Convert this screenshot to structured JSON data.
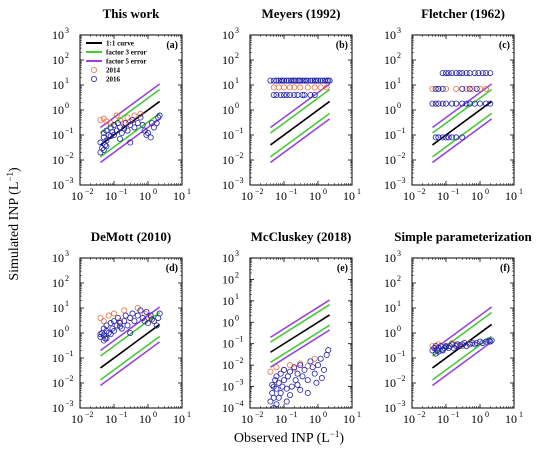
{
  "figure": {
    "xlabel": "Observed INP (L",
    "xlabel_unit_sup": "−1",
    "xlabel_close": ")",
    "ylabel": "Simulated INP (L",
    "ylabel_unit_sup": "−1",
    "ylabel_close": ")"
  },
  "legend": {
    "items": [
      {
        "label": "1:1 curve",
        "kind": "line",
        "color": "#000000"
      },
      {
        "label": "factor 3 error",
        "kind": "line",
        "color": "#44cc33"
      },
      {
        "label": "factor 5 error",
        "kind": "line",
        "color": "#9944dd"
      },
      {
        "label": "2014",
        "kind": "marker",
        "color": "#e87040"
      },
      {
        "label": "2016",
        "kind": "marker",
        "color": "#2222aa"
      }
    ]
  },
  "colors": {
    "one_to_one": "#000000",
    "factor3": "#44cc33",
    "factor5": "#9944dd",
    "y2014": "#e87040",
    "y2016": "#2222aa"
  },
  "chart_data": [
    {
      "type": "scatter",
      "id": "a",
      "panel_label": "(a)",
      "title": "This work",
      "xscale": "log",
      "yscale": "log",
      "xlim": [
        0.01,
        10
      ],
      "ylim": [
        0.001,
        1000
      ],
      "x_ticks": [
        "10",
        "10",
        "10",
        "10"
      ],
      "x_tick_exps": [
        "−2",
        "−1",
        "0",
        "1"
      ],
      "y_ticks": [
        "10",
        "10",
        "10",
        "10",
        "10",
        "10",
        "10"
      ],
      "y_tick_exps": [
        "−3",
        "−2",
        "−1",
        "0",
        "1",
        "2",
        "3"
      ],
      "reference_lines": {
        "one_to_one": [
          [
            0.04,
            2.2
          ]
        ],
        "factor3": [
          0.3333,
          3
        ],
        "factor5": [
          0.2,
          5
        ]
      },
      "series": [
        {
          "name": "2014",
          "x": [
            0.04,
            0.05,
            0.06,
            0.08,
            0.1,
            0.15,
            0.2,
            0.12,
            0.25,
            0.3,
            0.4,
            0.6
          ],
          "y": [
            0.4,
            0.45,
            0.35,
            0.3,
            0.25,
            0.4,
            0.3,
            0.6,
            0.5,
            0.35,
            0.6,
            0.7
          ]
        },
        {
          "name": "2016",
          "x": [
            0.04,
            0.04,
            0.045,
            0.05,
            0.05,
            0.055,
            0.06,
            0.06,
            0.07,
            0.08,
            0.08,
            0.09,
            0.1,
            0.1,
            0.12,
            0.13,
            0.15,
            0.17,
            0.2,
            0.22,
            0.25,
            0.3,
            0.35,
            0.4,
            0.5,
            0.6,
            0.7,
            0.8,
            1.0,
            1.2,
            1.5,
            1.8,
            2.0,
            2.2,
            0.05,
            0.06,
            0.15,
            0.3,
            0.9,
            1.3
          ],
          "y": [
            0.02,
            0.05,
            0.03,
            0.08,
            0.12,
            0.04,
            0.15,
            0.06,
            0.1,
            0.2,
            0.09,
            0.13,
            0.25,
            0.1,
            0.15,
            0.3,
            0.2,
            0.12,
            0.18,
            0.3,
            0.15,
            0.25,
            0.4,
            0.2,
            0.3,
            0.5,
            0.25,
            0.15,
            0.12,
            0.08,
            0.2,
            0.3,
            0.5,
            0.6,
            0.025,
            0.035,
            0.07,
            0.05,
            0.1,
            0.3
          ]
        }
      ]
    },
    {
      "type": "scatter",
      "id": "b",
      "panel_label": "(b)",
      "title": "Meyers (1992)",
      "xscale": "log",
      "yscale": "log",
      "xlim": [
        0.01,
        10
      ],
      "ylim": [
        0.001,
        1000
      ],
      "x_ticks": [
        "10",
        "10",
        "10",
        "10"
      ],
      "x_tick_exps": [
        "−2",
        "−1",
        "0",
        "1"
      ],
      "y_ticks": [
        "10",
        "10",
        "10",
        "10",
        "10",
        "10",
        "10"
      ],
      "y_tick_exps": [
        "−3",
        "−2",
        "−1",
        "0",
        "1",
        "2",
        "3"
      ],
      "reference_lines": {
        "one_to_one": [
          [
            0.04,
            2.2
          ]
        ],
        "factor3": [
          0.3333,
          3
        ],
        "factor5": [
          0.2,
          5
        ]
      },
      "series": [
        {
          "name": "2014",
          "x": [
            0.05,
            0.07,
            0.1,
            0.15,
            0.2,
            0.3,
            0.5,
            0.8,
            1.2,
            1.8
          ],
          "y": [
            8,
            8,
            8,
            8,
            8,
            8,
            8,
            8,
            8,
            8
          ]
        },
        {
          "name": "2016",
          "x": [
            0.04,
            0.05,
            0.06,
            0.07,
            0.08,
            0.09,
            0.1,
            0.12,
            0.14,
            0.16,
            0.18,
            0.2,
            0.22,
            0.25,
            0.28,
            0.3,
            0.35,
            0.4,
            0.45,
            0.5,
            0.6,
            0.7,
            0.8,
            0.9,
            1.0,
            1.2,
            1.4,
            1.6,
            1.8,
            2.0,
            2.2,
            0.05,
            0.06,
            0.08,
            0.1,
            0.12,
            0.15,
            0.2,
            0.25,
            0.35,
            0.4,
            0.6,
            0.8
          ],
          "y": [
            15,
            15,
            15,
            15,
            15,
            15,
            15,
            15,
            15,
            15,
            15,
            15,
            15,
            15,
            15,
            15,
            15,
            15,
            15,
            15,
            15,
            15,
            15,
            15,
            15,
            15,
            15,
            15,
            15,
            15,
            15,
            4,
            4,
            4,
            4,
            4,
            4,
            4,
            4,
            4,
            4,
            4,
            4
          ]
        }
      ]
    },
    {
      "type": "scatter",
      "id": "c",
      "panel_label": "(c)",
      "title": "Fletcher (1962)",
      "xscale": "log",
      "yscale": "log",
      "xlim": [
        0.01,
        10
      ],
      "ylim": [
        0.001,
        1000
      ],
      "x_ticks": [
        "10",
        "10",
        "10",
        "10"
      ],
      "x_tick_exps": [
        "−2",
        "−1",
        "0",
        "1"
      ],
      "y_ticks": [
        "10",
        "10",
        "10",
        "10",
        "10",
        "10",
        "10"
      ],
      "y_tick_exps": [
        "−3",
        "−2",
        "−1",
        "0",
        "1",
        "2",
        "3"
      ],
      "reference_lines": {
        "one_to_one": [
          [
            0.04,
            2.2
          ]
        ],
        "factor3": [
          0.3333,
          3
        ],
        "factor5": [
          0.2,
          5
        ]
      },
      "series": [
        {
          "name": "2014",
          "x": [
            0.04,
            0.06,
            0.1,
            0.2,
            0.4,
            0.6,
            1.0,
            1.5
          ],
          "y": [
            7,
            7,
            7,
            7,
            7,
            7,
            7,
            7
          ]
        },
        {
          "name": "2016",
          "x": [
            0.08,
            0.1,
            0.12,
            0.15,
            0.2,
            0.25,
            0.3,
            0.4,
            0.5,
            0.7,
            0.9,
            1.2,
            1.5,
            2.0,
            0.04,
            0.05,
            0.06,
            0.08,
            0.1,
            0.15,
            0.2,
            0.3,
            0.4,
            0.5,
            0.7,
            1.0,
            1.5,
            2.0,
            0.05,
            0.06,
            0.08,
            0.1,
            0.12,
            0.15,
            0.2,
            0.3,
            0.05,
            0.06,
            0.08,
            0.3,
            0.5,
            0.8
          ],
          "y": [
            30,
            30,
            30,
            30,
            30,
            30,
            30,
            30,
            30,
            30,
            30,
            30,
            30,
            30,
            1.8,
            1.8,
            1.8,
            1.8,
            1.8,
            1.8,
            1.8,
            1.8,
            1.8,
            1.8,
            1.8,
            1.8,
            1.8,
            1.8,
            0.08,
            0.08,
            0.08,
            0.08,
            0.08,
            0.08,
            0.08,
            0.08,
            7,
            7,
            7,
            7,
            7,
            7
          ]
        }
      ]
    },
    {
      "type": "scatter",
      "id": "d",
      "panel_label": "(d)",
      "title": "DeMott (2010)",
      "xscale": "log",
      "yscale": "log",
      "xlim": [
        0.01,
        10
      ],
      "ylim": [
        0.001,
        1000
      ],
      "x_ticks": [
        "10",
        "10",
        "10",
        "10"
      ],
      "x_tick_exps": [
        "−2",
        "−1",
        "0",
        "1"
      ],
      "y_ticks": [
        "10",
        "10",
        "10",
        "10",
        "10",
        "10",
        "10"
      ],
      "y_tick_exps": [
        "−3",
        "−2",
        "−1",
        "0",
        "1",
        "2",
        "3"
      ],
      "reference_lines": {
        "one_to_one": [
          [
            0.04,
            2.2
          ]
        ],
        "factor3": [
          0.3333,
          3
        ],
        "factor5": [
          0.2,
          5
        ]
      },
      "series": [
        {
          "name": "2014",
          "x": [
            0.04,
            0.05,
            0.07,
            0.1,
            0.15,
            0.2,
            0.3,
            0.5,
            0.8,
            1.2
          ],
          "y": [
            4,
            3,
            5,
            6,
            3,
            8,
            4,
            10,
            6,
            4
          ]
        },
        {
          "name": "2016",
          "x": [
            0.04,
            0.045,
            0.05,
            0.05,
            0.055,
            0.06,
            0.06,
            0.07,
            0.08,
            0.08,
            0.09,
            0.1,
            0.1,
            0.12,
            0.13,
            0.15,
            0.17,
            0.2,
            0.22,
            0.25,
            0.3,
            0.35,
            0.4,
            0.5,
            0.6,
            0.7,
            0.8,
            1.0,
            1.2,
            1.5,
            1.8,
            2.0,
            2.2,
            0.05,
            0.06,
            0.15,
            0.3,
            0.9,
            1.3,
            0.04
          ],
          "y": [
            0.7,
            1.0,
            0.8,
            1.5,
            0.6,
            1.2,
            2.0,
            1.0,
            2.5,
            0.9,
            1.5,
            3.0,
            1.2,
            2.0,
            4.0,
            2.5,
            1.5,
            3.0,
            5.0,
            2.0,
            4.0,
            6.0,
            3.0,
            5.0,
            8.0,
            4.0,
            3.0,
            2.5,
            5.0,
            3.0,
            2.0,
            4.0,
            6.0,
            0.5,
            0.6,
            1.8,
            1.0,
            7.0,
            3.5,
            0.9
          ]
        }
      ]
    },
    {
      "type": "scatter",
      "id": "e",
      "panel_label": "(e)",
      "title": "McCluskey (2018)",
      "xscale": "log",
      "yscale": "log",
      "xlim": [
        0.01,
        10
      ],
      "ylim": [
        0.0001,
        1000
      ],
      "x_ticks": [
        "10",
        "10",
        "10",
        "10"
      ],
      "x_tick_exps": [
        "−2",
        "−1",
        "0",
        "1"
      ],
      "y_ticks": [
        "10",
        "10",
        "10",
        "10",
        "10",
        "10",
        "10",
        "10"
      ],
      "y_tick_exps": [
        "−4",
        "−3",
        "−2",
        "−1",
        "0",
        "1",
        "2",
        "3"
      ],
      "reference_lines": {
        "one_to_one": [
          [
            0.04,
            2.2
          ]
        ],
        "factor3": [
          0.3333,
          3
        ],
        "factor5": [
          0.2,
          5
        ]
      },
      "series": [
        {
          "name": "2014",
          "x": [
            0.04,
            0.06,
            0.1,
            0.15,
            0.2,
            0.3,
            0.5,
            0.8
          ],
          "y": [
            0.005,
            0.008,
            0.006,
            0.01,
            0.007,
            0.012,
            0.009,
            0.02
          ]
        },
        {
          "name": "2016",
          "x": [
            0.04,
            0.045,
            0.05,
            0.05,
            0.055,
            0.06,
            0.06,
            0.07,
            0.08,
            0.08,
            0.09,
            0.1,
            0.1,
            0.12,
            0.13,
            0.15,
            0.17,
            0.2,
            0.22,
            0.25,
            0.3,
            0.35,
            0.4,
            0.5,
            0.6,
            0.7,
            0.8,
            1.0,
            1.2,
            1.5,
            1.8,
            2.0,
            0.05,
            0.06,
            0.15,
            0.3,
            0.9,
            1.3,
            0.045,
            0.07,
            0.12,
            0.25,
            0.5
          ],
          "y": [
            0.0002,
            0.0005,
            0.001,
            0.0003,
            0.002,
            0.0008,
            0.003,
            0.0015,
            0.0005,
            0.004,
            0.001,
            0.002,
            0.006,
            0.0008,
            0.003,
            0.005,
            0.001,
            0.008,
            0.002,
            0.004,
            0.01,
            0.003,
            0.006,
            0.002,
            0.015,
            0.008,
            0.004,
            0.01,
            0.02,
            0.006,
            0.03,
            0.05,
            0.0001,
            0.00015,
            0.0004,
            0.0007,
            0.0015,
            0.0025,
            0.0012,
            0.0003,
            0.0002,
            0.0012,
            0.0005
          ]
        }
      ]
    },
    {
      "type": "scatter",
      "id": "f",
      "panel_label": "(f)",
      "title": "Simple parameterization",
      "xscale": "log",
      "yscale": "log",
      "xlim": [
        0.01,
        10
      ],
      "ylim": [
        0.001,
        1000
      ],
      "x_ticks": [
        "10",
        "10",
        "10",
        "10"
      ],
      "x_tick_exps": [
        "−2",
        "−1",
        "0",
        "1"
      ],
      "y_ticks": [
        "10",
        "10",
        "10",
        "10",
        "10",
        "10",
        "10"
      ],
      "y_tick_exps": [
        "−3",
        "−2",
        "−1",
        "0",
        "1",
        "2",
        "3"
      ],
      "reference_lines": {
        "one_to_one": [
          [
            0.04,
            2.2
          ]
        ],
        "factor3": [
          0.3333,
          3
        ],
        "factor5": [
          0.2,
          5
        ]
      },
      "series": [
        {
          "name": "2014",
          "x": [
            0.04,
            0.06,
            0.1,
            0.15,
            0.2,
            0.3,
            0.5
          ],
          "y": [
            0.3,
            0.35,
            0.3,
            0.4,
            0.35,
            0.3,
            0.4
          ]
        },
        {
          "name": "2016",
          "x": [
            0.04,
            0.045,
            0.05,
            0.055,
            0.06,
            0.07,
            0.08,
            0.09,
            0.1,
            0.12,
            0.13,
            0.15,
            0.17,
            0.2,
            0.22,
            0.25,
            0.3,
            0.35,
            0.4,
            0.5,
            0.6,
            0.7,
            0.8,
            1.0,
            1.2,
            1.5,
            1.8,
            2.0,
            2.2,
            0.05,
            0.06,
            0.08,
            0.1
          ],
          "y": [
            0.2,
            0.25,
            0.3,
            0.2,
            0.25,
            0.3,
            0.2,
            0.25,
            0.3,
            0.25,
            0.3,
            0.35,
            0.25,
            0.3,
            0.35,
            0.3,
            0.35,
            0.4,
            0.3,
            0.35,
            0.4,
            0.35,
            0.4,
            0.45,
            0.4,
            0.45,
            0.5,
            0.45,
            0.5,
            0.15,
            0.18,
            0.22,
            0.28
          ]
        }
      ]
    }
  ]
}
